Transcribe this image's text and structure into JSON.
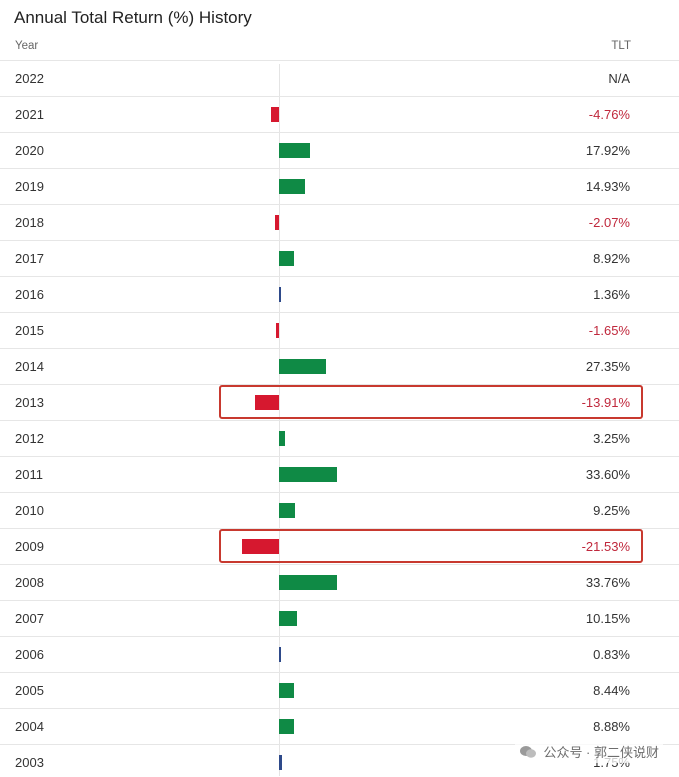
{
  "title": "Annual Total Return (%) History",
  "header": {
    "year": "Year",
    "ticker": "TLT"
  },
  "colors": {
    "positive": "#0f8a45",
    "negative": "#d6182f",
    "highlight": "#c8392f"
  },
  "watermark": "公众号 · 郭二侠说财",
  "chart_data": {
    "type": "bar",
    "title": "Annual Total Return (%) History",
    "series": [
      {
        "name": "TLT"
      }
    ],
    "categories": [
      "2022",
      "2021",
      "2020",
      "2019",
      "2018",
      "2017",
      "2016",
      "2015",
      "2014",
      "2013",
      "2012",
      "2011",
      "2010",
      "2009",
      "2008",
      "2007",
      "2006",
      "2005",
      "2004",
      "2003"
    ],
    "values": [
      null,
      -4.76,
      17.92,
      14.93,
      -2.07,
      8.92,
      1.36,
      -1.65,
      27.35,
      -13.91,
      3.25,
      33.6,
      9.25,
      -21.53,
      33.76,
      10.15,
      0.83,
      8.44,
      8.88,
      1.75
    ],
    "labels": [
      "N/A",
      "-4.76%",
      "17.92%",
      "14.93%",
      "-2.07%",
      "8.92%",
      "1.36%",
      "-1.65%",
      "27.35%",
      "-13.91%",
      "3.25%",
      "33.60%",
      "9.25%",
      "-21.53%",
      "33.76%",
      "10.15%",
      "0.83%",
      "8.44%",
      "8.88%",
      "1.75%"
    ],
    "highlighted": [
      "2013",
      "2009"
    ]
  }
}
